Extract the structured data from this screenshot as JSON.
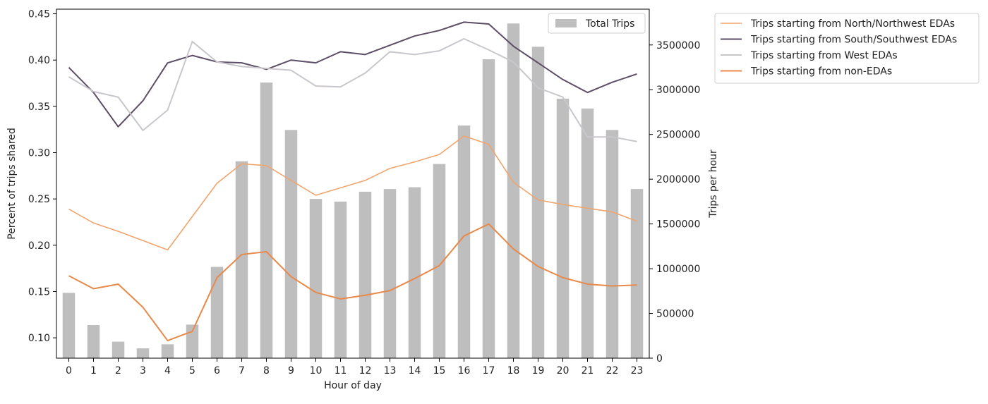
{
  "chart_data": {
    "type": "bar",
    "xlabel": "Hour of day",
    "ylabel_left": "Percent of trips shared",
    "ylabel_right": "Trips per hour",
    "x": [
      0,
      1,
      2,
      3,
      4,
      5,
      6,
      7,
      8,
      9,
      10,
      11,
      12,
      13,
      14,
      15,
      16,
      17,
      18,
      19,
      20,
      21,
      22,
      23
    ],
    "ylim_left": [
      0.078,
      0.455
    ],
    "yticks_left": [
      "0.10",
      "0.15",
      "0.20",
      "0.25",
      "0.30",
      "0.35",
      "0.40",
      "0.45"
    ],
    "ylim_right": [
      0,
      3900000
    ],
    "yticks_right": [
      "0",
      "500000",
      "1000000",
      "1500000",
      "2000000",
      "2500000",
      "3000000",
      "3500000"
    ],
    "bars": {
      "name": "Total Trips",
      "color": "#bebebe",
      "values": [
        730000,
        370000,
        185000,
        110000,
        155000,
        375000,
        1020000,
        2200000,
        3080000,
        2550000,
        1780000,
        1750000,
        1860000,
        1890000,
        1910000,
        2170000,
        2600000,
        3340000,
        3740000,
        3480000,
        2900000,
        2790000,
        2550000,
        1890000
      ]
    },
    "series": [
      {
        "name": "Trips starting from North/Northwest EDAs",
        "color": "#f0a46e",
        "width": 1.6,
        "values": [
          0.239,
          0.224,
          0.215,
          0.205,
          0.195,
          0.231,
          0.267,
          0.288,
          0.286,
          0.27,
          0.254,
          0.262,
          0.27,
          0.283,
          0.29,
          0.298,
          0.318,
          0.309,
          0.268,
          0.249,
          0.244,
          0.24,
          0.236,
          0.226
        ]
      },
      {
        "name": "Trips starting from South/Southwest EDAs",
        "color": "#5c4e66",
        "width": 2,
        "values": [
          0.392,
          0.365,
          0.328,
          0.356,
          0.397,
          0.405,
          0.398,
          0.397,
          0.39,
          0.4,
          0.397,
          0.409,
          0.406,
          0.416,
          0.426,
          0.432,
          0.441,
          0.439,
          0.415,
          0.397,
          0.379,
          0.365,
          0.376,
          0.385
        ]
      },
      {
        "name": "Trips starting from West EDAs",
        "color": "#c9c6cc",
        "width": 2,
        "values": [
          0.382,
          0.366,
          0.36,
          0.324,
          0.346,
          0.42,
          0.398,
          0.393,
          0.391,
          0.389,
          0.372,
          0.371,
          0.386,
          0.409,
          0.406,
          0.41,
          0.423,
          0.411,
          0.398,
          0.37,
          0.36,
          0.317,
          0.317,
          0.312
        ]
      },
      {
        "name": "Trips starting from non-EDAs",
        "color": "#e8894a",
        "width": 2,
        "values": [
          0.167,
          0.153,
          0.158,
          0.133,
          0.097,
          0.107,
          0.165,
          0.19,
          0.193,
          0.166,
          0.149,
          0.142,
          0.146,
          0.151,
          0.164,
          0.178,
          0.21,
          0.223,
          0.196,
          0.177,
          0.165,
          0.158,
          0.156,
          0.157
        ]
      }
    ],
    "legend_bars_placement": "top-right inside plot",
    "legend_lines_placement": "right, outside plot"
  }
}
